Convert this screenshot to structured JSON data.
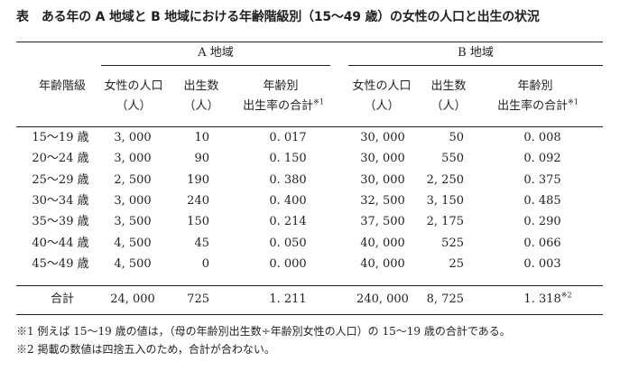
{
  "title": {
    "tag": "表",
    "text": "ある年の A 地域と B 地域における年齢階級別（15〜49 歳）の女性の人口と出生の状況"
  },
  "groups": {
    "a": "A 地域",
    "b": "B 地域"
  },
  "headers": {
    "age": "年齢階級",
    "pop_line1": "女性の人口",
    "pop_line2": "（人）",
    "births_line1": "出生数",
    "births_line2": "（人）",
    "rate_line1": "年齢別",
    "rate_line2": "出生率の合計",
    "rate_mark": "※1"
  },
  "rows": [
    {
      "age": "15〜19 歳",
      "a_pop": "3, 000",
      "a_births": "10",
      "a_rate": "0. 017",
      "b_pop": "30, 000",
      "b_births": "50",
      "b_rate": "0. 008"
    },
    {
      "age": "20〜24 歳",
      "a_pop": "3, 000",
      "a_births": "90",
      "a_rate": "0. 150",
      "b_pop": "30, 000",
      "b_births": "550",
      "b_rate": "0. 092"
    },
    {
      "age": "25〜29 歳",
      "a_pop": "2, 500",
      "a_births": "190",
      "a_rate": "0. 380",
      "b_pop": "30, 000",
      "b_births": "2, 250",
      "b_rate": "0. 375"
    },
    {
      "age": "30〜34 歳",
      "a_pop": "3, 000",
      "a_births": "240",
      "a_rate": "0. 400",
      "b_pop": "32, 500",
      "b_births": "3, 150",
      "b_rate": "0. 485"
    },
    {
      "age": "35〜39 歳",
      "a_pop": "3, 500",
      "a_births": "150",
      "a_rate": "0. 214",
      "b_pop": "37, 500",
      "b_births": "2, 175",
      "b_rate": "0. 290"
    },
    {
      "age": "40〜44 歳",
      "a_pop": "4, 500",
      "a_births": "45",
      "a_rate": "0. 050",
      "b_pop": "40, 000",
      "b_births": "525",
      "b_rate": "0. 066"
    },
    {
      "age": "45〜49 歳",
      "a_pop": "4, 500",
      "a_births": "0",
      "a_rate": "0. 000",
      "b_pop": "40, 000",
      "b_births": "25",
      "b_rate": "0. 003"
    }
  ],
  "total": {
    "label": "合計",
    "a_pop": "24, 000",
    "a_births": "725",
    "a_rate": "1. 211",
    "b_pop": "240, 000",
    "b_births": "8, 725",
    "b_rate": "1. 318",
    "b_rate_mark": "※2"
  },
  "notes": [
    "※1 例えば 15〜19 歳の値は，（母の年齢別出生数÷年齢別女性の人口）の 15〜19 歳の合計である。",
    "※2 掲載の数値は四捨五入のため，合計が合わない。"
  ]
}
